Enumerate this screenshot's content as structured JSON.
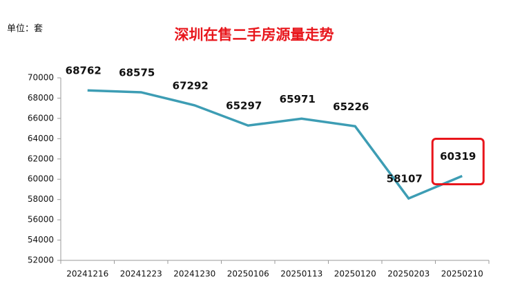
{
  "chart_data": {
    "type": "line",
    "title": "深圳在售二手房源量走势",
    "unit_label": "单位：套",
    "categories": [
      "20241216",
      "20241223",
      "20241230",
      "20250106",
      "20250113",
      "20250120",
      "20250203",
      "20250210"
    ],
    "series": [
      {
        "name": "在售二手房源量",
        "color": "#3d9db4",
        "values": [
          68762,
          68575,
          67292,
          65297,
          65971,
          65226,
          58107,
          60319
        ]
      }
    ],
    "ylim": [
      52000,
      70000
    ],
    "yticks": [
      52000,
      54000,
      56000,
      58000,
      60000,
      62000,
      64000,
      66000,
      68000,
      70000
    ],
    "grid": false,
    "highlight_color": "#e8151b"
  }
}
